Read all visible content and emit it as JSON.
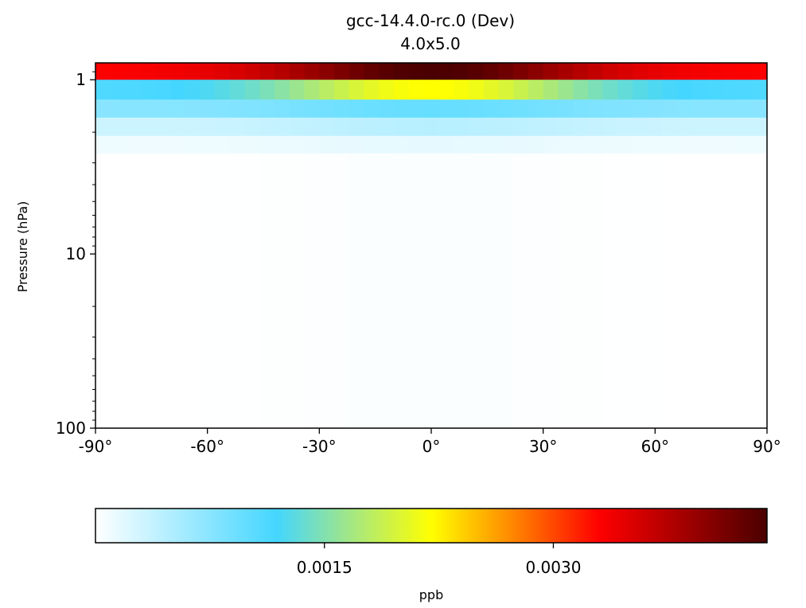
{
  "chart_data": {
    "type": "heatmap",
    "title": "gcc-14.4.0-rc.0 (Dev)",
    "subtitle": "4.0x5.0",
    "ylabel": "Pressure (hPa)",
    "xlabel": "",
    "y_scale": "log",
    "y_inverted": true,
    "xlim": [
      -90,
      90
    ],
    "ylim": [
      100,
      0.8
    ],
    "x_ticks": [
      -90,
      -60,
      -30,
      0,
      30,
      60,
      90
    ],
    "x_tick_labels": [
      "-90°",
      "-60°",
      "-30°",
      "0°",
      "30°",
      "60°",
      "90°"
    ],
    "y_ticks": [
      1,
      10,
      100
    ],
    "y_tick_labels": [
      "1",
      "10",
      "100"
    ],
    "lat_edges": [
      -90,
      -86,
      -82,
      -78,
      -74,
      -70,
      -66,
      -62,
      -58,
      -54,
      -50,
      -46,
      -42,
      -38,
      -34,
      -30,
      -26,
      -22,
      -18,
      -14,
      -10,
      -6,
      -2,
      2,
      6,
      10,
      14,
      18,
      22,
      26,
      30,
      34,
      38,
      42,
      46,
      50,
      54,
      58,
      62,
      66,
      70,
      74,
      78,
      82,
      86,
      90
    ],
    "levels": [
      {
        "p_top": 0.8,
        "p_bottom": 1.0,
        "min": 0.0033,
        "max": 0.0044
      },
      {
        "p_top": 1.0,
        "p_bottom": 1.3,
        "min": 0.0011,
        "max": 0.0022
      },
      {
        "p_top": 1.3,
        "p_bottom": 1.65,
        "min": 0.00075,
        "max": 0.00097
      },
      {
        "p_top": 1.65,
        "p_bottom": 2.1,
        "min": 0.00032,
        "max": 0.00045
      },
      {
        "p_top": 2.1,
        "p_bottom": 2.65,
        "min": 0.0001,
        "max": 0.00016
      },
      {
        "p_top": 2.65,
        "p_bottom": 100,
        "min": 0.0,
        "max": 3e-05
      }
    ],
    "grid": false,
    "colorbar": {
      "orientation": "horizontal",
      "label": "ppb",
      "range": [
        0,
        0.0044
      ],
      "ticks": [
        0.0015,
        0.003
      ],
      "tick_labels": [
        "0.0015",
        "0.0030"
      ],
      "colormap_stops": [
        {
          "pos": 0.0,
          "color": "#ffffff"
        },
        {
          "pos": 0.27,
          "color": "#44d6ff"
        },
        {
          "pos": 0.37,
          "color": "#9be58f"
        },
        {
          "pos": 0.5,
          "color": "#ffff00"
        },
        {
          "pos": 0.62,
          "color": "#ff8800"
        },
        {
          "pos": 0.75,
          "color": "#ff0000"
        },
        {
          "pos": 1.0,
          "color": "#4a0000"
        }
      ]
    }
  }
}
